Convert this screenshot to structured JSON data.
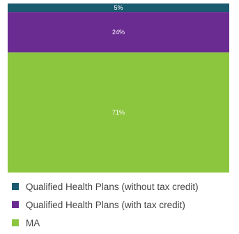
{
  "chart_data": {
    "type": "bar",
    "stacked": true,
    "orientation": "vertical",
    "categories": [
      ""
    ],
    "series": [
      {
        "name": "Qualified Health Plans (without tax credit)",
        "values": [
          5
        ],
        "label": "5%",
        "color": "#1a5a6e"
      },
      {
        "name": "Qualified Health Plans (with tax credit)",
        "values": [
          24
        ],
        "label": "24%",
        "color": "#6b2c91"
      },
      {
        "name": "MA",
        "values": [
          71
        ],
        "label": "71%",
        "color": "#8cc63f"
      }
    ],
    "ylim": [
      0,
      100
    ],
    "grid": false,
    "legend_position": "bottom-left"
  }
}
